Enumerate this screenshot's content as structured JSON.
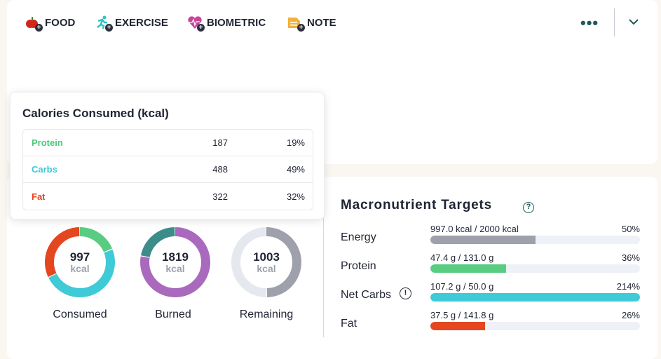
{
  "actions": [
    {
      "label": "FOOD",
      "icon": "apple-plus-icon"
    },
    {
      "label": "EXERCISE",
      "icon": "runner-plus-icon"
    },
    {
      "label": "BIOMETRIC",
      "icon": "heart-plus-icon"
    },
    {
      "label": "NOTE",
      "icon": "note-plus-icon"
    }
  ],
  "more_label": "•••",
  "tooltip": {
    "title": "Calories Consumed (kcal)",
    "rows": [
      {
        "name": "Protein",
        "value": "187",
        "pct": "19%",
        "color": "#4cc97a"
      },
      {
        "name": "Carbs",
        "value": "488",
        "pct": "49%",
        "color": "#3cc8d6"
      },
      {
        "name": "Fat",
        "value": "322",
        "pct": "32%",
        "color": "#e5431f"
      }
    ]
  },
  "donuts": [
    {
      "value": "997",
      "unit": "kcal",
      "label": "Consumed",
      "segments": [
        {
          "frac": 0.19,
          "color": "#58cd82"
        },
        {
          "frac": 0.49,
          "color": "#3ecad6"
        },
        {
          "frac": 0.32,
          "color": "#e4461f"
        }
      ]
    },
    {
      "value": "1819",
      "unit": "kcal",
      "label": "Burned",
      "segments": [
        {
          "frac": 0.78,
          "color": "#a96abd"
        },
        {
          "frac": 0.22,
          "color": "#3c8c8a"
        }
      ]
    },
    {
      "value": "1003",
      "unit": "kcal",
      "label": "Remaining",
      "segments": [
        {
          "frac": 0.5,
          "color": "#9ea0ab"
        },
        {
          "frac": 0.5,
          "color": "#e6e8ef"
        }
      ]
    }
  ],
  "macros": {
    "title": "Macronutrient Targets",
    "rows": [
      {
        "name": "Energy",
        "amount": "997.0 kcal / 2000 kcal",
        "pct": "50%",
        "fill": 0.5,
        "color": "#9ea1ab"
      },
      {
        "name": "Protein",
        "amount": "47.4 g / 131.0 g",
        "pct": "36%",
        "fill": 0.36,
        "color": "#58cd82"
      },
      {
        "name": "Net Carbs",
        "amount": "107.2 g / 50.0 g",
        "pct": "214%",
        "fill": 1,
        "color": "#3ecad6",
        "warn": "!"
      },
      {
        "name": "Fat",
        "amount": "37.5 g / 141.8 g",
        "pct": "26%",
        "fill": 0.26,
        "color": "#e4461f"
      }
    ]
  }
}
